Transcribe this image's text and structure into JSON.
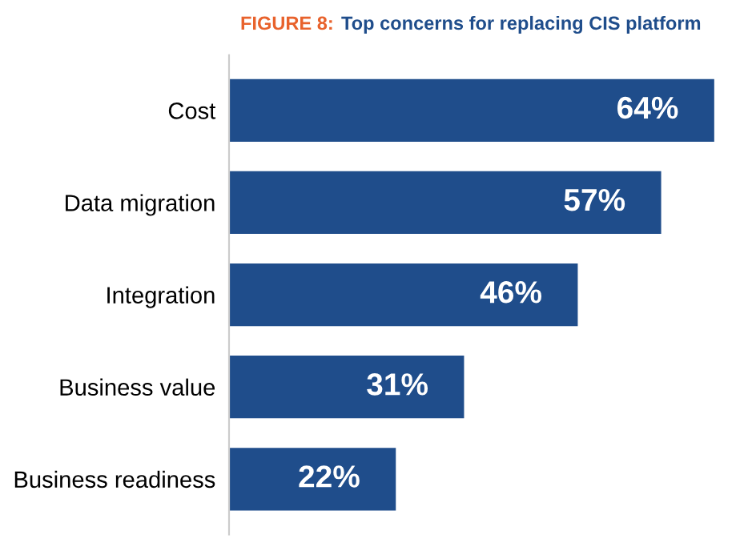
{
  "chart_data": {
    "type": "bar",
    "orientation": "horizontal",
    "title": "FIGURE 8:",
    "subtitle": "Top concerns for replacing CIS platform",
    "categories": [
      "Cost",
      "Data migration",
      "Integration",
      "Business value",
      "Business readiness"
    ],
    "values": [
      64,
      57,
      46,
      31,
      22
    ],
    "value_labels": [
      "64%",
      "57%",
      "46%",
      "31%",
      "22%"
    ],
    "color": "#1f4d8b",
    "grid": false,
    "legend": false
  }
}
